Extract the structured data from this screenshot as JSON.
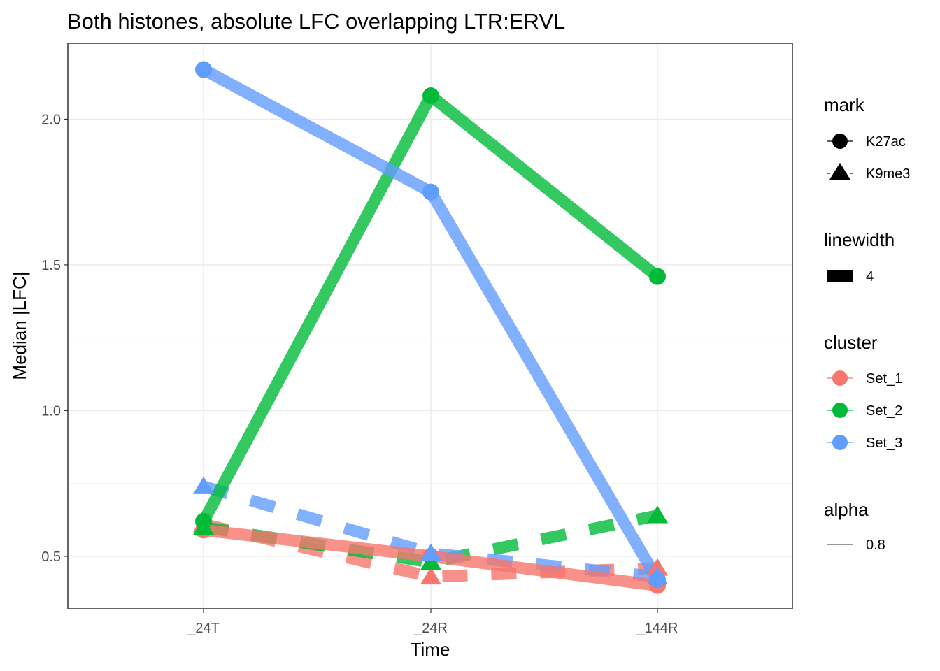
{
  "chart_data": {
    "type": "line",
    "title": "Both histones, absolute LFC overlapping LTR:ERVL",
    "xlabel": "Time",
    "ylabel": "Median |LFC|",
    "categories": [
      "_24T",
      "_24R",
      "_144R"
    ],
    "ylim": [
      0.32,
      2.26
    ],
    "yticks": [
      0.5,
      1.0,
      1.5,
      2.0
    ],
    "ytick_labels": [
      "0.5",
      "1.0",
      "1.5",
      "2.0"
    ],
    "grid": true,
    "legend_position": "right",
    "series": [
      {
        "cluster": "Set_1",
        "mark": "K27ac",
        "color": "#F8766D",
        "values": [
          0.59,
          0.5,
          0.4
        ]
      },
      {
        "cluster": "Set_1",
        "mark": "K9me3",
        "color": "#F8766D",
        "values": [
          0.61,
          0.43,
          0.46
        ]
      },
      {
        "cluster": "Set_2",
        "mark": "K27ac",
        "color": "#00BA38",
        "values": [
          0.62,
          2.08,
          1.46
        ]
      },
      {
        "cluster": "Set_2",
        "mark": "K9me3",
        "color": "#00BA38",
        "values": [
          0.6,
          0.48,
          0.64
        ]
      },
      {
        "cluster": "Set_3",
        "mark": "K27ac",
        "color": "#619CFF",
        "values": [
          2.17,
          1.75,
          0.42
        ]
      },
      {
        "cluster": "Set_3",
        "mark": "K9me3",
        "color": "#619CFF",
        "values": [
          0.74,
          0.51,
          0.43
        ]
      }
    ],
    "legend": {
      "mark": {
        "title": "mark",
        "items": [
          "K27ac",
          "K9me3"
        ]
      },
      "linewidth": {
        "title": "linewidth",
        "items": [
          "4"
        ]
      },
      "cluster": {
        "title": "cluster",
        "items": [
          {
            "label": "Set_1",
            "color": "#F8766D"
          },
          {
            "label": "Set_2",
            "color": "#00BA38"
          },
          {
            "label": "Set_3",
            "color": "#619CFF"
          }
        ]
      },
      "alpha": {
        "title": "alpha",
        "items": [
          "0.8"
        ]
      }
    },
    "line_alpha": 0.8
  }
}
